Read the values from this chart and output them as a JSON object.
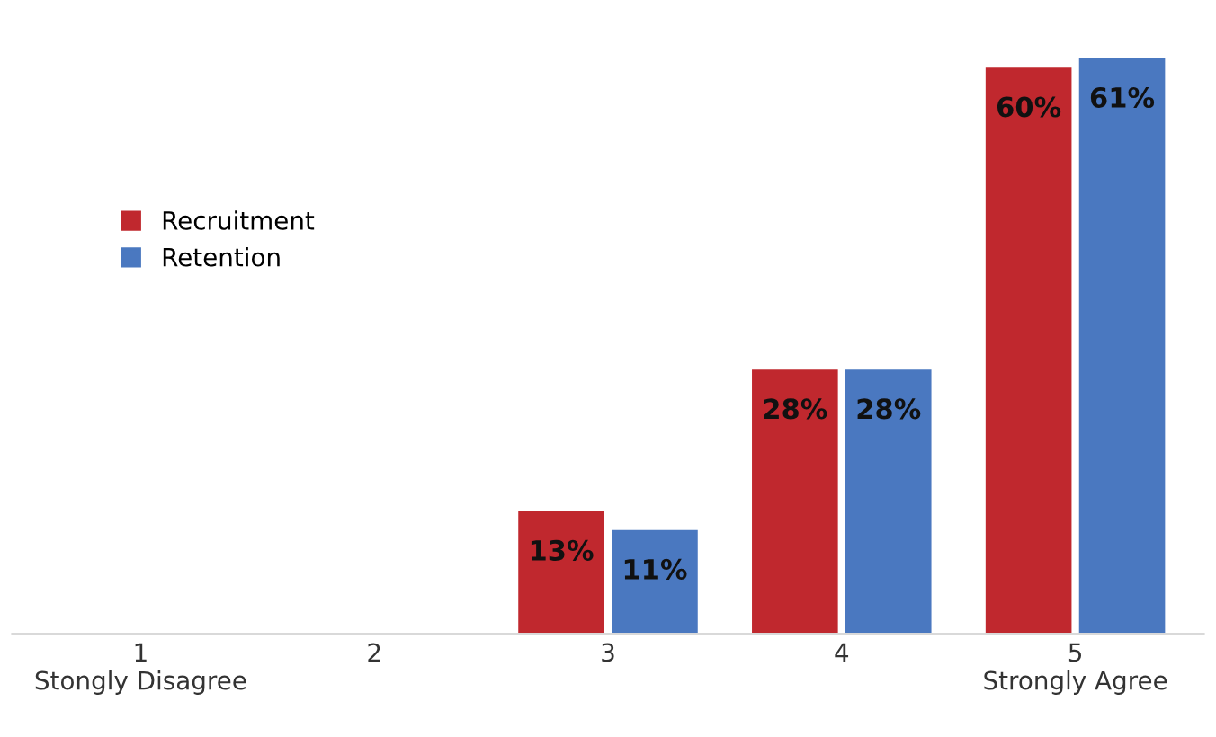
{
  "chart_data": {
    "type": "bar",
    "categories": [
      "1\nStongly Disagree",
      "2",
      "3",
      "4",
      "5\nStrongly Agree"
    ],
    "series": [
      {
        "name": "Recruitment",
        "color": "#c0282e",
        "values": [
          null,
          null,
          13,
          28,
          60
        ],
        "value_labels": [
          null,
          null,
          "13%",
          "28%",
          "60%"
        ]
      },
      {
        "name": "Retention",
        "color": "#4a78c0",
        "values": [
          null,
          null,
          11,
          28,
          61
        ],
        "value_labels": [
          null,
          null,
          "11%",
          "28%",
          "61%"
        ]
      }
    ],
    "legend": "left",
    "grid": false
  }
}
